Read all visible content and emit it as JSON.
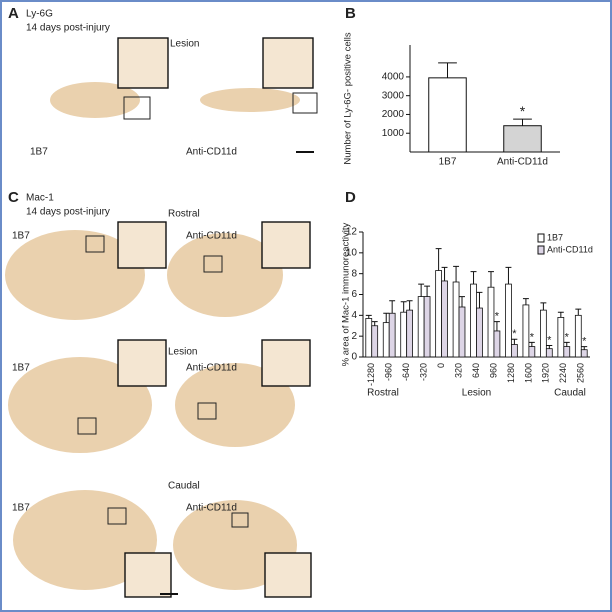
{
  "panels": {
    "A": {
      "letter": "A",
      "marker": "Ly-6G",
      "time": "14 days post-injury",
      "level": "Lesion",
      "left": "1B7",
      "right": "Anti-CD11d"
    },
    "C": {
      "letter": "C",
      "marker": "Mac-1",
      "time": "14 days post-injury",
      "rows": [
        {
          "level": "Rostral",
          "left": "1B7",
          "right": "Anti-CD11d"
        },
        {
          "level": "Lesion",
          "left": "1B7",
          "right": "Anti-CD11d"
        },
        {
          "level": "Caudal",
          "left": "1B7",
          "right": "Anti-CD11d"
        }
      ]
    }
  },
  "chart_data": [
    {
      "type": "bar",
      "panel": "B",
      "y_label": "Number of Ly-6G- positive cells",
      "categories": [
        "1B7",
        "Anti-CD11d"
      ],
      "values": [
        3950,
        1400
      ],
      "errors": [
        800,
        350
      ],
      "colors": [
        "#ffffff",
        "#d4d4d4"
      ],
      "markers": [
        null,
        "*"
      ],
      "ylim": [
        0,
        5700
      ],
      "yticks": [
        1000,
        2000,
        3000,
        4000
      ]
    },
    {
      "type": "grouped-bar",
      "panel": "D",
      "y_label": "% area of Mac-1 immunoreactivity",
      "categories": [
        -1280,
        -960,
        -640,
        -320,
        0,
        320,
        640,
        960,
        1280,
        1600,
        1920,
        2240,
        2560
      ],
      "series": [
        {
          "name": "1B7",
          "color": "#ffffff",
          "values": [
            3.7,
            3.3,
            4.3,
            5.8,
            8.3,
            7.2,
            7.0,
            6.7,
            7.0,
            5.0,
            4.5,
            3.8,
            4.0
          ],
          "errors": [
            0.3,
            0.9,
            1.0,
            1.2,
            2.1,
            1.5,
            1.2,
            1.5,
            1.6,
            0.6,
            0.7,
            0.5,
            0.6
          ]
        },
        {
          "name": "Anti-CD11d",
          "color": "#ddd5e6",
          "values": [
            3.0,
            4.2,
            4.5,
            5.8,
            7.3,
            4.8,
            4.7,
            2.5,
            1.2,
            1.0,
            0.8,
            1.0,
            0.7
          ],
          "errors": [
            0.4,
            1.2,
            0.9,
            1.0,
            1.3,
            1.0,
            1.5,
            0.9,
            0.5,
            0.4,
            0.3,
            0.4,
            0.3
          ],
          "markers": [
            null,
            null,
            null,
            null,
            null,
            null,
            null,
            "*",
            "*",
            "*",
            "*",
            "*",
            "*"
          ]
        }
      ],
      "regions": [
        "Rostral",
        "Lesion",
        "Caudal"
      ],
      "ylim": [
        0,
        12
      ],
      "yticks": [
        0,
        2,
        4,
        6,
        8,
        10,
        12
      ]
    }
  ]
}
